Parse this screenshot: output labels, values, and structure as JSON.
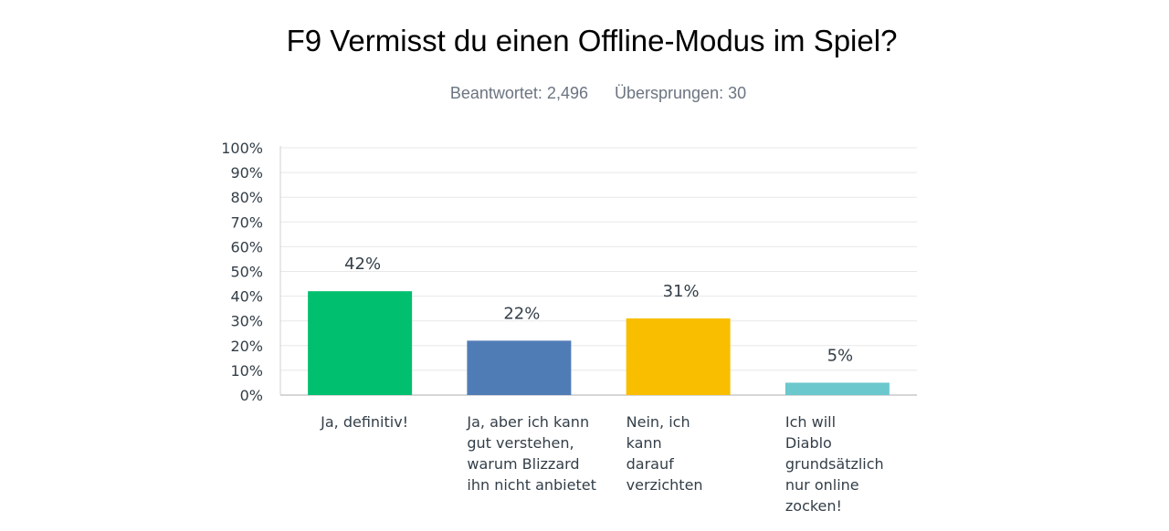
{
  "header": {
    "title": "F9 Vermisst du einen Offline-Modus im Spiel?",
    "answered": "Beantwortet: 2,496",
    "skipped": "Übersprungen: 30"
  },
  "chart_data": {
    "type": "bar",
    "title": "F9 Vermisst du einen Offline-Modus im Spiel?",
    "xlabel": "",
    "ylabel": "",
    "ylim": [
      0,
      100
    ],
    "y_ticks": [
      "0%",
      "10%",
      "20%",
      "30%",
      "40%",
      "50%",
      "60%",
      "70%",
      "80%",
      "90%",
      "100%"
    ],
    "categories": [
      "Ja, definitiv!",
      "Ja, aber ich kann gut verstehen, warum Blizzard ihn nicht anbietet",
      "Nein, ich kann darauf verzichten",
      "Ich will Diablo grundsätzlich nur online zocken!"
    ],
    "category_lines": [
      [
        "Ja, definitiv!"
      ],
      [
        "Ja, aber ich kann",
        "gut verstehen,",
        "warum Blizzard",
        "ihn nicht anbietet"
      ],
      [
        "Nein, ich",
        "kann",
        "darauf",
        "verzichten"
      ],
      [
        "Ich will",
        "Diablo",
        "grundsätzlich",
        "nur online",
        "zocken!"
      ]
    ],
    "values": [
      42,
      22,
      31,
      5
    ],
    "value_labels": [
      "42%",
      "22%",
      "31%",
      "5%"
    ],
    "colors": [
      "#00bf6f",
      "#507cb6",
      "#f9be00",
      "#6bc8cd"
    ],
    "grid": true,
    "legend": "none"
  }
}
